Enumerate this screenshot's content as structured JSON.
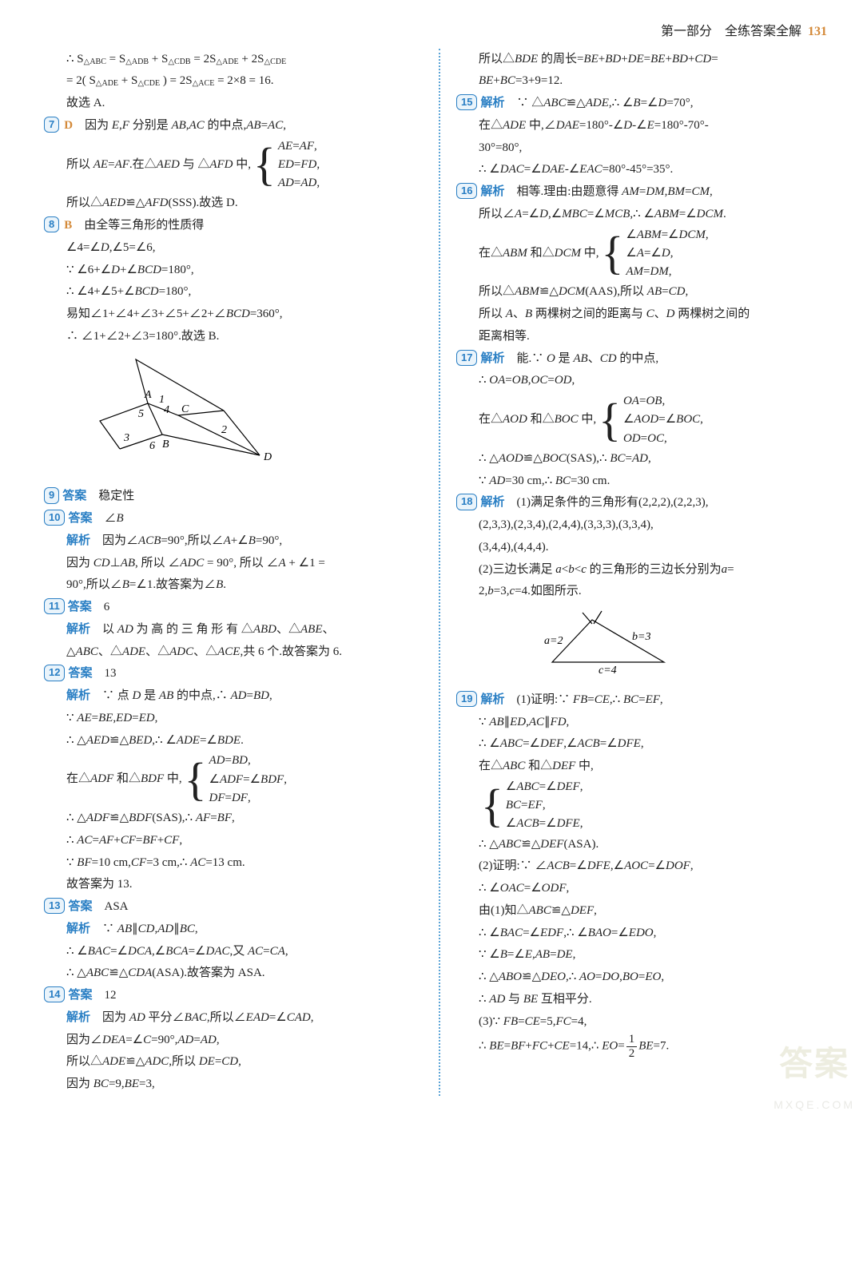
{
  "header": {
    "section": "第一部分",
    "title": "全练答案全解",
    "page": "131"
  },
  "left": {
    "p6a": "∴ S<sub>△ABC</sub> = S<sub>△ADB</sub> + S<sub>△CDB</sub> = 2S<sub>△ADE</sub> + 2S<sub>△CDE</sub>",
    "p6b": "= 2( S<sub>△ADE</sub> + S<sub>△CDE</sub> ) = 2S<sub>△ACE</sub> = 2×8 = 16.",
    "p6c": "故选 A.",
    "n7": "7",
    "a7": "D",
    "p7a": "因为 <span class='it'>E</span>,<span class='it'>F</span> 分别是 <span class='it'>AB</span>,<span class='it'>AC</span> 的中点,<span class='it'>AB</span>=<span class='it'>AC</span>,",
    "p7b_pre": "所以 <span class='it'>AE</span>=<span class='it'>AF</span>.在△<span class='it'>AED</span> 与 △<span class='it'>AFD</span> 中,",
    "p7b_1": "<span class='it'>AE</span>=<span class='it'>AF</span>,",
    "p7b_2": "<span class='it'>ED</span>=<span class='it'>FD</span>,",
    "p7b_3": "<span class='it'>AD</span>=<span class='it'>AD</span>,",
    "p7c": "所以△<span class='it'>AED</span>≌△<span class='it'>AFD</span>(SSS).故选 D.",
    "n8": "8",
    "a8": "B",
    "p8a": "由全等三角形的性质得",
    "p8b": "∠4=∠<span class='it'>D</span>,∠5=∠6,",
    "p8c": "∵ ∠6+∠<span class='it'>D</span>+∠<span class='it'>BCD</span>=180°,",
    "p8d": "∴ ∠4+∠5+∠<span class='it'>BCD</span>=180°,",
    "p8e": "易知∠1+∠4+∠3+∠5+∠2+∠<span class='it'>BCD</span>=360°,",
    "p8f": "∴ ∠1+∠2+∠3=180°.故选 B.",
    "n9": "9",
    "a9lbl": "答案",
    "a9": "稳定性",
    "n10": "10",
    "a10lbl": "答案",
    "a10": "∠<span class='it'>B</span>",
    "a10e": "解析",
    "p10a": "因为∠<span class='it'>ACB</span>=90°,所以∠<span class='it'>A</span>+∠<span class='it'>B</span>=90°,",
    "p10b": "因为 <span class='it'>CD</span>⊥<span class='it'>AB</span>, 所以 ∠<span class='it'>ADC</span> = 90°, 所以 ∠<span class='it'>A</span> + ∠1 =",
    "p10c": "90°,所以∠<span class='it'>B</span>=∠1.故答案为∠<span class='it'>B</span>.",
    "n11": "11",
    "a11lbl": "答案",
    "a11": "6",
    "a11e": "解析",
    "p11a": "以 <span class='it'>AD</span> 为 高 的 三 角 形 有 △<span class='it'>ABD</span>、△<span class='it'>ABE</span>、",
    "p11b": "△<span class='it'>ABC</span>、△<span class='it'>ADE</span>、△<span class='it'>ADC</span>、△<span class='it'>ACE</span>,共 6 个.故答案为 6.",
    "n12": "12",
    "a12lbl": "答案",
    "a12": "13",
    "a12e": "解析",
    "p12a": "∵ 点 <span class='it'>D</span> 是 <span class='it'>AB</span> 的中点,∴ <span class='it'>AD</span>=<span class='it'>BD</span>,",
    "p12b": "∵ <span class='it'>AE</span>=<span class='it'>BE</span>,<span class='it'>ED</span>=<span class='it'>ED</span>,",
    "p12c": "∴ △<span class='it'>AED</span>≌△<span class='it'>BED</span>,∴ ∠<span class='it'>ADE</span>=∠<span class='it'>BDE</span>.",
    "p12d_pre": "在△<span class='it'>ADF</span> 和△<span class='it'>BDF</span> 中,",
    "p12d_1": "<span class='it'>AD</span>=<span class='it'>BD</span>,",
    "p12d_2": "∠<span class='it'>ADF</span>=∠<span class='it'>BDF</span>,",
    "p12d_3": "<span class='it'>DF</span>=<span class='it'>DF</span>,",
    "p12e": "∴ △<span class='it'>ADF</span>≌△<span class='it'>BDF</span>(SAS),∴ <span class='it'>AF</span>=<span class='it'>BF</span>,",
    "p12f": "∴ <span class='it'>AC</span>=<span class='it'>AF</span>+<span class='it'>CF</span>=<span class='it'>BF</span>+<span class='it'>CF</span>,",
    "p12g": "∵ <span class='it'>BF</span>=10 cm,<span class='it'>CF</span>=3 cm,∴ <span class='it'>AC</span>=13 cm.",
    "p12h": "故答案为 13.",
    "n13": "13",
    "a13lbl": "答案",
    "a13": "ASA",
    "a13e": "解析",
    "p13a": "∵ <span class='it'>AB</span>∥<span class='it'>CD</span>,<span class='it'>AD</span>∥<span class='it'>BC</span>,",
    "p13b": "∴ ∠<span class='it'>BAC</span>=∠<span class='it'>DCA</span>,∠<span class='it'>BCA</span>=∠<span class='it'>DAC</span>,又 <span class='it'>AC</span>=<span class='it'>CA</span>,",
    "p13c": "∴ △<span class='it'>ABC</span>≌△<span class='it'>CDA</span>(ASA).故答案为 ASA.",
    "n14": "14",
    "a14lbl": "答案",
    "a14": "12",
    "a14e": "解析",
    "p14a": "因为 <span class='it'>AD</span> 平分∠<span class='it'>BAC</span>,所以∠<span class='it'>EAD</span>=∠<span class='it'>CAD</span>,",
    "p14b": "因为∠<span class='it'>DEA</span>=∠<span class='it'>C</span>=90°,<span class='it'>AD</span>=<span class='it'>AD</span>,",
    "p14c": "所以△<span class='it'>ADE</span>≌△<span class='it'>ADC</span>,所以 <span class='it'>DE</span>=<span class='it'>CD</span>,",
    "p14d": "因为 <span class='it'>BC</span>=9,<span class='it'>BE</span>=3,"
  },
  "right": {
    "p14e": "所以△<span class='it'>BDE</span> 的周长=<span class='it'>BE</span>+<span class='it'>BD</span>+<span class='it'>DE</span>=<span class='it'>BE</span>+<span class='it'>BD</span>+<span class='it'>CD</span>=",
    "p14f": "<span class='it'>BE</span>+<span class='it'>BC</span>=3+9=12.",
    "n15": "15",
    "a15e": "解析",
    "p15a": "∵ △<span class='it'>ABC</span>≌△<span class='it'>ADE</span>,∴ ∠<span class='it'>B</span>=∠<span class='it'>D</span>=70°,",
    "p15b": "在△<span class='it'>ADE</span> 中,∠<span class='it'>DAE</span>=180°-∠<span class='it'>D</span>-∠<span class='it'>E</span>=180°-70°-",
    "p15c": "30°=80°,",
    "p15d": "∴ ∠<span class='it'>DAC</span>=∠<span class='it'>DAE</span>-∠<span class='it'>EAC</span>=80°-45°=35°.",
    "n16": "16",
    "a16e": "解析",
    "p16a": "相等.理由:由题意得 <span class='it'>AM</span>=<span class='it'>DM</span>,<span class='it'>BM</span>=<span class='it'>CM</span>,",
    "p16b": "所以∠<span class='it'>A</span>=∠<span class='it'>D</span>,∠<span class='it'>MBC</span>=∠<span class='it'>MCB</span>,∴ ∠<span class='it'>ABM</span>=∠<span class='it'>DCM</span>.",
    "p16c_pre": "在△<span class='it'>ABM</span> 和△<span class='it'>DCM</span> 中,",
    "p16c_1": "∠<span class='it'>ABM</span>=∠<span class='it'>DCM</span>,",
    "p16c_2": "∠<span class='it'>A</span>=∠<span class='it'>D</span>,",
    "p16c_3": "<span class='it'>AM</span>=<span class='it'>DM</span>,",
    "p16d": "所以△<span class='it'>ABM</span>≌△<span class='it'>DCM</span>(AAS),所以 <span class='it'>AB</span>=<span class='it'>CD</span>,",
    "p16e": "所以 <span class='it'>A</span>、<span class='it'>B</span> 两棵树之间的距离与 <span class='it'>C</span>、<span class='it'>D</span> 两棵树之间的",
    "p16f": "距离相等.",
    "n17": "17",
    "a17e": "解析",
    "p17a": "能.∵ <span class='it'>O</span> 是 <span class='it'>AB</span>、<span class='it'>CD</span> 的中点,",
    "p17b": "∴ <span class='it'>OA</span>=<span class='it'>OB</span>,<span class='it'>OC</span>=<span class='it'>OD</span>,",
    "p17c_pre": "在△<span class='it'>AOD</span> 和△<span class='it'>BOC</span> 中,",
    "p17c_1": "<span class='it'>OA</span>=<span class='it'>OB</span>,",
    "p17c_2": "∠<span class='it'>AOD</span>=∠<span class='it'>BOC</span>,",
    "p17c_3": "<span class='it'>OD</span>=<span class='it'>OC</span>,",
    "p17d": "∴ △<span class='it'>AOD</span>≌△<span class='it'>BOC</span>(SAS),∴ <span class='it'>BC</span>=<span class='it'>AD</span>,",
    "p17e": "∵ <span class='it'>AD</span>=30 cm,∴ <span class='it'>BC</span>=30 cm.",
    "n18": "18",
    "a18e": "解析",
    "p18a": "(1)满足条件的三角形有(2,2,2),(2,2,3),",
    "p18b": "(2,3,3),(2,3,4),(2,4,4),(3,3,3),(3,3,4),",
    "p18c": "(3,4,4),(4,4,4).",
    "p18d": "(2)三边长满足 <span class='it'>a</span>&lt;<span class='it'>b</span>&lt;<span class='it'>c</span> 的三角形的三边长分别为<span class='it'>a</span>=",
    "p18e": "2,<span class='it'>b</span>=3,<span class='it'>c</span>=4.如图所示.",
    "fig18_a": "a=2",
    "fig18_b": "b=3",
    "fig18_c": "c=4",
    "n19": "19",
    "a19e": "解析",
    "p19a": "(1)证明:∵ <span class='it'>FB</span>=<span class='it'>CE</span>,∴ <span class='it'>BC</span>=<span class='it'>EF</span>,",
    "p19b": "∵ <span class='it'>AB</span>∥<span class='it'>ED</span>,<span class='it'>AC</span>∥<span class='it'>FD</span>,",
    "p19c": "∴ ∠<span class='it'>ABC</span>=∠<span class='it'>DEF</span>,∠<span class='it'>ACB</span>=∠<span class='it'>DFE</span>,",
    "p19d": "在△<span class='it'>ABC</span> 和△<span class='it'>DEF</span> 中,",
    "p19d_1": "∠<span class='it'>ABC</span>=∠<span class='it'>DEF</span>,",
    "p19d_2": "<span class='it'>BC</span>=<span class='it'>EF</span>,",
    "p19d_3": "∠<span class='it'>ACB</span>=∠<span class='it'>DFE</span>,",
    "p19e": "∴ △<span class='it'>ABC</span>≌△<span class='it'>DEF</span>(ASA).",
    "p19f": "(2)证明:∵ ∠<span class='it'>ACB</span>=∠<span class='it'>DFE</span>,∠<span class='it'>AOC</span>=∠<span class='it'>DOF</span>,",
    "p19g": "∴ ∠<span class='it'>OAC</span>=∠<span class='it'>ODF</span>,",
    "p19h": "由(1)知△<span class='it'>ABC</span>≌△<span class='it'>DEF</span>,",
    "p19i": "∴ ∠<span class='it'>BAC</span>=∠<span class='it'>EDF</span>,∴ ∠<span class='it'>BAO</span>=∠<span class='it'>EDO</span>,",
    "p19j": "∵ ∠<span class='it'>B</span>=∠<span class='it'>E</span>,<span class='it'>AB</span>=<span class='it'>DE</span>,",
    "p19k": "∴ △<span class='it'>ABO</span>≌△<span class='it'>DEO</span>,∴ <span class='it'>AO</span>=<span class='it'>DO</span>,<span class='it'>BO</span>=<span class='it'>EO</span>,",
    "p19l": "∴ <span class='it'>AD</span> 与 <span class='it'>BE</span> 互相平分.",
    "p19m": "(3)∵ <span class='it'>FB</span>=<span class='it'>CE</span>=5,<span class='it'>FC</span>=4,",
    "p19n_pre": "∴ <span class='it'>BE</span>=<span class='it'>BF</span>+<span class='it'>FC</span>+<span class='it'>CE</span>=14,∴ <span class='it'>EO</span>=",
    "p19n_post": "<span class='it'>BE</span>=7."
  },
  "watermark": {
    "big": "答案",
    "small": "MXQE.COM"
  }
}
